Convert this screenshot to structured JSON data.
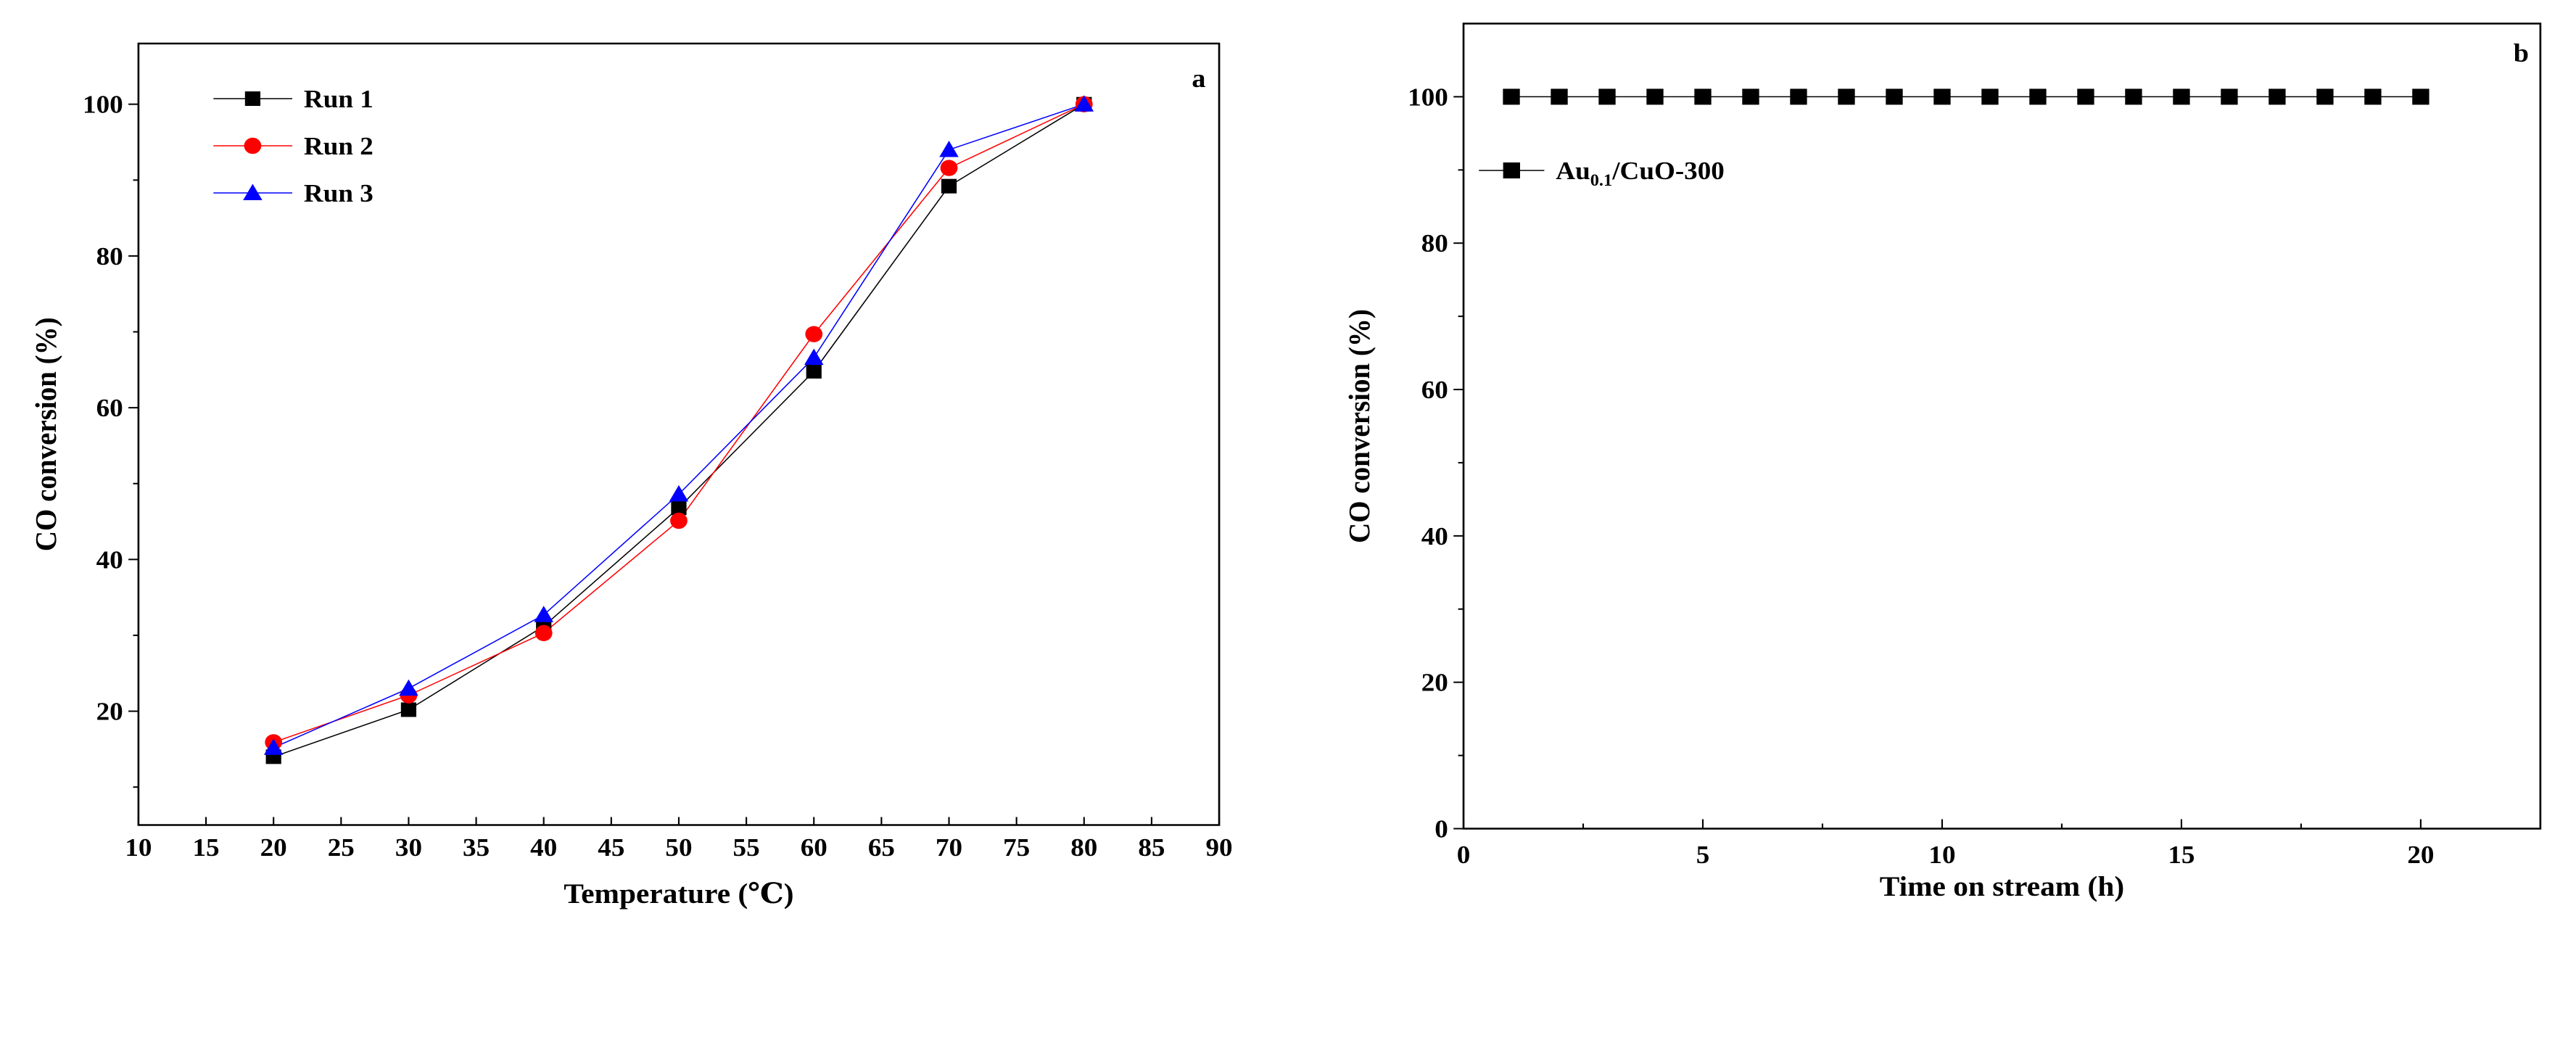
{
  "chart_data": [
    {
      "panel": "a",
      "type": "line",
      "corner_label": "a",
      "xlabel": "Temperature (℃)",
      "ylabel": "CO conversion (%)",
      "xlim": [
        10,
        90
      ],
      "ylim": [
        5,
        108
      ],
      "xticks": [
        10,
        15,
        20,
        25,
        30,
        35,
        40,
        45,
        50,
        55,
        60,
        65,
        70,
        75,
        80,
        85,
        90
      ],
      "yticks": [
        20,
        40,
        60,
        80,
        100
      ],
      "x": [
        20,
        30,
        40,
        50,
        60,
        70,
        80
      ],
      "legend_position": "top-left",
      "series": [
        {
          "name": "Run 1",
          "marker": "square",
          "color": "#000000",
          "values": [
            14.0,
            20.2,
            31.2,
            46.8,
            64.8,
            89.2,
            100
          ]
        },
        {
          "name": "Run 2",
          "marker": "circle",
          "color": "#ff0000",
          "values": [
            15.9,
            22.1,
            30.3,
            45.1,
            69.7,
            91.6,
            100
          ]
        },
        {
          "name": "Run 3",
          "marker": "triangle",
          "color": "#0000ff",
          "values": [
            15.2,
            23.0,
            32.7,
            48.6,
            66.6,
            94.0,
            100
          ]
        }
      ]
    },
    {
      "panel": "b",
      "type": "line",
      "corner_label": "b",
      "xlabel": "Time on stream (h)",
      "ylabel": "CO conversion (%)",
      "xlim": [
        0,
        22.5
      ],
      "ylim": [
        0,
        110
      ],
      "xticks": [
        0,
        5,
        10,
        15,
        20
      ],
      "yticks": [
        0,
        20,
        40,
        60,
        80,
        100
      ],
      "legend_position": "top-left",
      "series": [
        {
          "name_main": "Au",
          "name_sub": "0.1",
          "name_rest": "/CuO-300",
          "marker": "square",
          "color": "#000000",
          "x": [
            1,
            2,
            3,
            4,
            5,
            6,
            7,
            8,
            9,
            10,
            11,
            12,
            13,
            14,
            15,
            16,
            17,
            18,
            19,
            20
          ],
          "values": [
            100,
            100,
            100,
            100,
            100,
            100,
            100,
            100,
            100,
            100,
            100,
            100,
            100,
            100,
            100,
            100,
            100,
            100,
            100,
            100
          ]
        }
      ]
    }
  ]
}
